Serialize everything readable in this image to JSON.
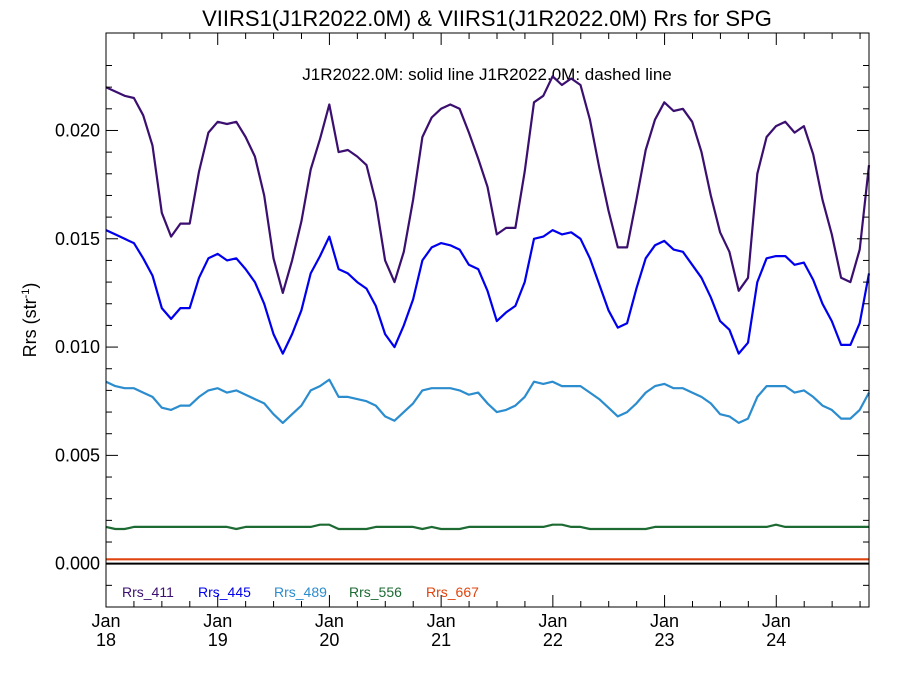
{
  "chart_data": {
    "type": "line",
    "title": "VIIRS1(J1R2022.0M) & VIIRS1(J1R2022.0M)  Rrs for SPG",
    "subtitle": "J1R2022.0M: solid line   J1R2022.0M: dashed line",
    "ylabel_main": "Rrs (str",
    "ylabel_sup": "-1",
    "ylabel_end": ")",
    "ylim": [
      -0.002,
      0.0245
    ],
    "xlim": [
      2018.0,
      2024.83
    ],
    "yticks": [
      {
        "value": 0.0,
        "label": "0.000"
      },
      {
        "value": 0.005,
        "label": "0.005"
      },
      {
        "value": 0.01,
        "label": "0.010"
      },
      {
        "value": 0.015,
        "label": "0.015"
      },
      {
        "value": 0.02,
        "label": "0.020"
      }
    ],
    "xticks": [
      {
        "value": 2018,
        "month": "Jan",
        "year": "18"
      },
      {
        "value": 2019,
        "month": "Jan",
        "year": "19"
      },
      {
        "value": 2020,
        "month": "Jan",
        "year": "20"
      },
      {
        "value": 2021,
        "month": "Jan",
        "year": "21"
      },
      {
        "value": 2022,
        "month": "Jan",
        "year": "22"
      },
      {
        "value": 2023,
        "month": "Jan",
        "year": "23"
      },
      {
        "value": 2024,
        "month": "Jan",
        "year": "24"
      }
    ],
    "series": [
      {
        "name": "Rrs_411",
        "color": "#3b0f70",
        "values": [
          0.022,
          0.0218,
          0.0216,
          0.0215,
          0.0207,
          0.0193,
          0.0162,
          0.0151,
          0.0157,
          0.0157,
          0.0181,
          0.0199,
          0.0204,
          0.0203,
          0.0204,
          0.0197,
          0.0188,
          0.017,
          0.0141,
          0.0125,
          0.014,
          0.0158,
          0.0182,
          0.0196,
          0.0212,
          0.019,
          0.0191,
          0.0188,
          0.0184,
          0.0167,
          0.014,
          0.013,
          0.0144,
          0.0168,
          0.0197,
          0.0206,
          0.021,
          0.0212,
          0.021,
          0.0199,
          0.0187,
          0.0174,
          0.0152,
          0.0155,
          0.0155,
          0.0181,
          0.0213,
          0.0216,
          0.0225,
          0.0221,
          0.0224,
          0.0221,
          0.0205,
          0.0183,
          0.0163,
          0.0146,
          0.0146,
          0.0168,
          0.0191,
          0.0205,
          0.0213,
          0.0209,
          0.021,
          0.0204,
          0.019,
          0.017,
          0.0153,
          0.0144,
          0.0126,
          0.0132,
          0.018,
          0.0197,
          0.0202,
          0.0204,
          0.0199,
          0.0202,
          0.0189,
          0.0168,
          0.0152,
          0.0132,
          0.013,
          0.0145,
          0.0184
        ]
      },
      {
        "name": "Rrs_445",
        "color": "#0000ee",
        "values": [
          0.0154,
          0.0152,
          0.015,
          0.0148,
          0.0141,
          0.0133,
          0.0118,
          0.0113,
          0.0118,
          0.0118,
          0.0132,
          0.0141,
          0.0143,
          0.014,
          0.0141,
          0.0136,
          0.013,
          0.012,
          0.0106,
          0.0097,
          0.0106,
          0.0117,
          0.0134,
          0.0142,
          0.0151,
          0.0136,
          0.0134,
          0.013,
          0.0127,
          0.0119,
          0.0106,
          0.01,
          0.011,
          0.0122,
          0.014,
          0.0146,
          0.0148,
          0.0147,
          0.0145,
          0.0138,
          0.0136,
          0.0126,
          0.0112,
          0.0116,
          0.0119,
          0.013,
          0.015,
          0.0151,
          0.0154,
          0.0152,
          0.0153,
          0.015,
          0.0141,
          0.0129,
          0.0117,
          0.0109,
          0.0111,
          0.0127,
          0.0141,
          0.0147,
          0.0149,
          0.0145,
          0.0144,
          0.0138,
          0.0132,
          0.0123,
          0.0112,
          0.0108,
          0.0097,
          0.0102,
          0.013,
          0.0141,
          0.0142,
          0.0142,
          0.0138,
          0.0139,
          0.0131,
          0.012,
          0.0112,
          0.0101,
          0.0101,
          0.0111,
          0.0134
        ]
      },
      {
        "name": "Rrs_489",
        "color": "#2b8cce",
        "values": [
          0.0084,
          0.0082,
          0.0081,
          0.0081,
          0.0079,
          0.0077,
          0.0072,
          0.0071,
          0.0073,
          0.0073,
          0.0077,
          0.008,
          0.0081,
          0.0079,
          0.008,
          0.0078,
          0.0076,
          0.0074,
          0.0069,
          0.0065,
          0.0069,
          0.0073,
          0.008,
          0.0082,
          0.0085,
          0.0077,
          0.0077,
          0.0076,
          0.0075,
          0.0073,
          0.0068,
          0.0066,
          0.007,
          0.0074,
          0.008,
          0.0081,
          0.0081,
          0.0081,
          0.008,
          0.0078,
          0.0079,
          0.0074,
          0.007,
          0.0071,
          0.0073,
          0.0077,
          0.0084,
          0.0083,
          0.0084,
          0.0082,
          0.0082,
          0.0082,
          0.0079,
          0.0076,
          0.0072,
          0.0068,
          0.007,
          0.0074,
          0.0079,
          0.0082,
          0.0083,
          0.0081,
          0.0081,
          0.0079,
          0.0077,
          0.0074,
          0.0069,
          0.0068,
          0.0065,
          0.0067,
          0.0077,
          0.0082,
          0.0082,
          0.0082,
          0.0079,
          0.008,
          0.0077,
          0.0073,
          0.0071,
          0.0067,
          0.0067,
          0.0071,
          0.0079
        ]
      },
      {
        "name": "Rrs_556",
        "color": "#1d6b33",
        "values": [
          0.0017,
          0.0016,
          0.0016,
          0.0017,
          0.0017,
          0.0017,
          0.0017,
          0.0017,
          0.0017,
          0.0017,
          0.0017,
          0.0017,
          0.0017,
          0.0017,
          0.0016,
          0.0017,
          0.0017,
          0.0017,
          0.0017,
          0.0017,
          0.0017,
          0.0017,
          0.0017,
          0.0018,
          0.0018,
          0.0016,
          0.0016,
          0.0016,
          0.0016,
          0.0017,
          0.0017,
          0.0017,
          0.0017,
          0.0017,
          0.0016,
          0.0017,
          0.0016,
          0.0016,
          0.0016,
          0.0017,
          0.0017,
          0.0017,
          0.0017,
          0.0017,
          0.0017,
          0.0017,
          0.0017,
          0.0017,
          0.0018,
          0.0018,
          0.0017,
          0.0017,
          0.0016,
          0.0016,
          0.0016,
          0.0016,
          0.0016,
          0.0016,
          0.0016,
          0.0017,
          0.0017,
          0.0017,
          0.0017,
          0.0017,
          0.0017,
          0.0017,
          0.0017,
          0.0017,
          0.0017,
          0.0017,
          0.0017,
          0.0017,
          0.0018,
          0.0017,
          0.0017,
          0.0017,
          0.0017,
          0.0017,
          0.0017,
          0.0017,
          0.0017,
          0.0017,
          0.0017
        ]
      },
      {
        "name": "Rrs_667",
        "color": "#e0440e",
        "values": [
          0.0002,
          0.0002,
          0.0002,
          0.0002,
          0.0002,
          0.0002,
          0.0002,
          0.0002,
          0.0002,
          0.0002,
          0.0002,
          0.0002,
          0.0002,
          0.0002,
          0.0002,
          0.0002,
          0.0002,
          0.0002,
          0.0002,
          0.0002,
          0.0002,
          0.0002,
          0.0002,
          0.0002,
          0.0002,
          0.0002,
          0.0002,
          0.0002,
          0.0002,
          0.0002,
          0.0002,
          0.0002,
          0.0002,
          0.0002,
          0.0002,
          0.0002,
          0.0002,
          0.0002,
          0.0002,
          0.0002,
          0.0002,
          0.0002,
          0.0002,
          0.0002,
          0.0002,
          0.0002,
          0.0002,
          0.0002,
          0.0002,
          0.0002,
          0.0002,
          0.0002,
          0.0002,
          0.0002,
          0.0002,
          0.0002,
          0.0002,
          0.0002,
          0.0002,
          0.0002,
          0.0002,
          0.0002,
          0.0002,
          0.0002,
          0.0002,
          0.0002,
          0.0002,
          0.0002,
          0.0002,
          0.0002,
          0.0002,
          0.0002,
          0.0002,
          0.0002,
          0.0002,
          0.0002,
          0.0002,
          0.0002,
          0.0002,
          0.0002,
          0.0002,
          0.0002,
          0.0002
        ]
      }
    ],
    "reference_line": {
      "value": 0.0,
      "color": "#000000"
    },
    "grid": false,
    "legend_placement": "bottom-left"
  }
}
